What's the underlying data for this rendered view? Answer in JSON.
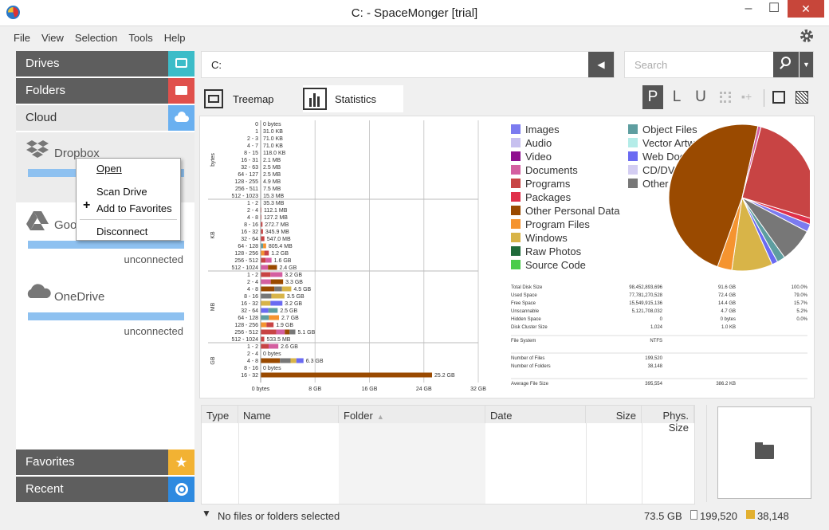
{
  "window": {
    "title": "C: - SpaceMonger  [trial]",
    "minimize": "–",
    "maximize": "☐",
    "close": "✕"
  },
  "menu": [
    "File",
    "View",
    "Selection",
    "Tools",
    "Help"
  ],
  "sidebar": {
    "drives": "Drives",
    "folders": "Folders",
    "cloud": "Cloud",
    "favorites": "Favorites",
    "recent": "Recent",
    "services": [
      {
        "name": "Dropbox",
        "status": ""
      },
      {
        "name": "Goo",
        "status": "unconnected"
      },
      {
        "name": "OneDrive",
        "status": "unconnected"
      }
    ]
  },
  "context_menu": {
    "open": "Open",
    "scan": "Scan Drive",
    "add_fav": "Add to Favorites",
    "disconnect": "Disconnect"
  },
  "path": {
    "value": "C:"
  },
  "search": {
    "placeholder": "Search"
  },
  "tabs": {
    "treemap": "Treemap",
    "statistics": "Statistics"
  },
  "view_buttons": {
    "p": "P",
    "l": "L",
    "u": "U"
  },
  "chart_data": [
    {
      "type": "bar",
      "title": "",
      "xlabel": "",
      "x_ticks": [
        "0 bytes",
        "8 GB",
        "16 GB",
        "24 GB",
        "32 GB"
      ],
      "xlim_gb": [
        0,
        32
      ],
      "groups": [
        {
          "unit": "bytes",
          "rows": [
            [
              "0",
              "0 bytes",
              0
            ],
            [
              "1",
              "31.0 KB",
              3e-05
            ],
            [
              "2 - 3",
              "71.0 KB",
              7e-05
            ],
            [
              "4 - 7",
              "71.0 KB",
              7e-05
            ],
            [
              "8 - 15",
              "118.0 KB",
              0.0001
            ],
            [
              "16 - 31",
              "2.1 MB",
              0.002
            ],
            [
              "32 - 63",
              "2.5 MB",
              0.0025
            ],
            [
              "64 - 127",
              "2.5 MB",
              0.0025
            ],
            [
              "128 - 255",
              "4.9 MB",
              0.005
            ],
            [
              "256 - 511",
              "7.5 MB",
              0.0075
            ],
            [
              "512 - 1023",
              "15.3 MB",
              0.015
            ]
          ]
        },
        {
          "unit": "KB",
          "rows": [
            [
              "1 - 2",
              "35.3 MB",
              0.035
            ],
            [
              "2 - 4",
              "112.1 MB",
              0.11
            ],
            [
              "4 - 8",
              "127.2 MB",
              0.12
            ],
            [
              "8 - 16",
              "272.7 MB",
              0.27
            ],
            [
              "16 - 32",
              "345.9 MB",
              0.34
            ],
            [
              "32 - 64",
              "547.0 MB",
              0.55
            ],
            [
              "64 - 128",
              "805.4 MB",
              0.8
            ],
            [
              "128 - 256",
              "1.2 GB",
              1.2
            ],
            [
              "256 - 512",
              "1.6 GB",
              1.6
            ],
            [
              "512 - 1024",
              "2.4 GB",
              2.4
            ]
          ]
        },
        {
          "unit": "MB",
          "rows": [
            [
              "1 - 2",
              "3.2 GB",
              3.2
            ],
            [
              "2 - 4",
              "3.3 GB",
              3.3
            ],
            [
              "4 - 8",
              "4.5 GB",
              4.5
            ],
            [
              "8 - 16",
              "3.5 GB",
              3.5
            ],
            [
              "16 - 32",
              "3.2 GB",
              3.2
            ],
            [
              "32 - 64",
              "2.5 GB",
              2.5
            ],
            [
              "64 - 128",
              "2.7 GB",
              2.7
            ],
            [
              "128 - 256",
              "1.9 GB",
              1.9
            ],
            [
              "256 - 512",
              "5.1 GB",
              5.1
            ],
            [
              "512 - 1024",
              "533.5 MB",
              0.53
            ]
          ]
        },
        {
          "unit": "GB",
          "rows": [
            [
              "1 - 2",
              "2.6 GB",
              2.6
            ],
            [
              "2 - 4",
              "0 bytes",
              0
            ],
            [
              "4 - 8",
              "6.3 GB",
              6.3
            ],
            [
              "8 - 16",
              "0 bytes",
              0
            ],
            [
              "16 - 32",
              "25.2 GB",
              25.2
            ]
          ]
        }
      ]
    },
    {
      "type": "pie",
      "legend": [
        [
          "Images",
          "#7b7bf0"
        ],
        [
          "Audio",
          "#c7c0ef"
        ],
        [
          "Video",
          "#8f0f8f"
        ],
        [
          "Documents",
          "#d45fa0"
        ],
        [
          "Programs",
          "#c84444"
        ],
        [
          "Packages",
          "#e0304a"
        ],
        [
          "Other Personal Data",
          "#9a4a00"
        ],
        [
          "Program Files",
          "#f59430"
        ],
        [
          "Windows",
          "#d8b448"
        ],
        [
          "Raw Photos",
          "#1f6b3a"
        ],
        [
          "Source Code",
          "#4bcc4b"
        ],
        [
          "Object Files",
          "#5e9ea0"
        ],
        [
          "Vector Artwork",
          "#b4ece8"
        ],
        [
          "Web Documents",
          "#6a6af2"
        ],
        [
          "CD/DVD Images",
          "#d3cdf2"
        ],
        [
          "Other",
          "#777777"
        ]
      ],
      "slices": [
        [
          "Programs",
          25.5,
          "#c84444"
        ],
        [
          "Packages",
          1.3,
          "#e0304a"
        ],
        [
          "Images",
          1.7,
          "#7b7bf0"
        ],
        [
          "Other",
          7.5,
          "#777777"
        ],
        [
          "Object Files",
          1.8,
          "#5e9ea0"
        ],
        [
          "Web Documents",
          1.3,
          "#6a6af2"
        ],
        [
          "Windows",
          9,
          "#d8b448"
        ],
        [
          "Program Files",
          3.2,
          "#f59430"
        ],
        [
          "Other Personal Data",
          48,
          "#9a4a00"
        ],
        [
          "Documents",
          0.7,
          "#d45fa0"
        ]
      ]
    }
  ],
  "stats": [
    [
      "Total Disk Size",
      "98,452,893,696",
      "91.6 GB",
      "100.0%"
    ],
    [
      "Used Space",
      "77,781,270,528",
      "72.4 GB",
      "79.0%"
    ],
    [
      "Free Space",
      "15,549,915,136",
      "14.4 GB",
      "15.7%"
    ],
    [
      "Unscannable",
      "5,121,708,032",
      "4.7 GB",
      "5.2%"
    ],
    [
      "Hidden Space",
      "0",
      "0 bytes",
      "0.0%"
    ],
    [
      "Disk Cluster Size",
      "1,024",
      "1.0 KB",
      ""
    ],
    [
      "File System",
      "NTFS",
      "",
      ""
    ],
    [
      "Number of Files",
      "199,520",
      "",
      ""
    ],
    [
      "Number of Folders",
      "38,148",
      "",
      ""
    ],
    [
      "Average File Size",
      "395,554",
      "386.2 KB",
      ""
    ]
  ],
  "table": {
    "columns": [
      "Type",
      "Name",
      "Folder",
      "Date",
      "Size",
      "Phys. Size"
    ]
  },
  "status": {
    "message": "No files or folders selected",
    "size": "73.5 GB",
    "files": "199,520",
    "folders": "38,148"
  }
}
